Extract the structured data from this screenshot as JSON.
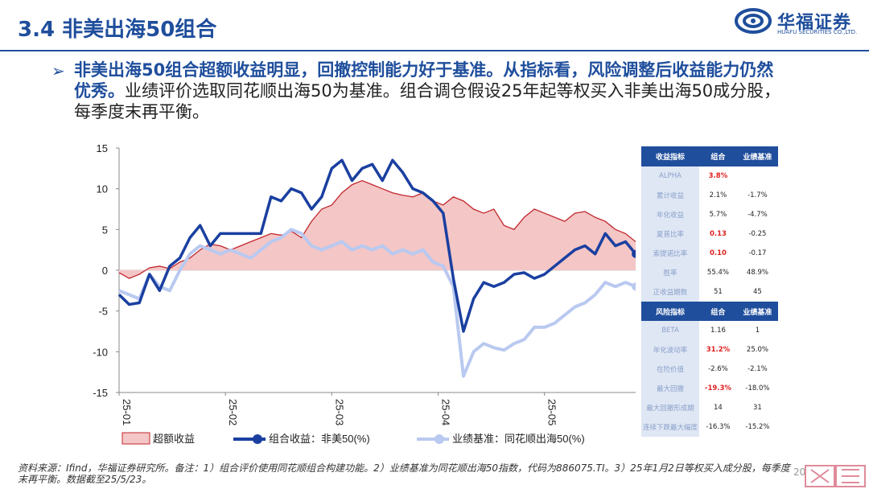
{
  "header": {
    "title": "3.4 非美出海50组合",
    "logo_cn": "华福证券",
    "logo_en": "HUAFU SECURITIES CO.,LTD."
  },
  "bullet": {
    "marker": "➢",
    "highlight": "非美出海50组合超额收益明显，回撤控制能力好于基准。从指标看，风险调整后收益能力仍然优秀。",
    "rest": "业绩评价选取同花顺出海50为基准。组合调仓假设25年起等权买入非美出海50成分股，每季度末再平衡。"
  },
  "table": {
    "returns_header": [
      "收益指标",
      "组合",
      "业绩基准"
    ],
    "returns_rows": [
      {
        "label": "ALPHA",
        "portfolio": "3.8%",
        "benchmark": "",
        "red": true
      },
      {
        "label": "累计收益",
        "portfolio": "2.1%",
        "benchmark": "-1.7%",
        "red": false
      },
      {
        "label": "年化收益",
        "portfolio": "5.7%",
        "benchmark": "-4.7%",
        "red": false
      },
      {
        "label": "夏普比率",
        "portfolio": "0.13",
        "benchmark": "-0.25",
        "red": true
      },
      {
        "label": "索提诺比率",
        "portfolio": "0.10",
        "benchmark": "-0.17",
        "red": true
      },
      {
        "label": "胜率",
        "portfolio": "55.4%",
        "benchmark": "48.9%",
        "red": false
      },
      {
        "label": "正收益期数",
        "portfolio": "51",
        "benchmark": "45",
        "red": false
      }
    ],
    "risk_header": [
      "风险指标",
      "组合",
      "业绩基准"
    ],
    "risk_rows": [
      {
        "label": "BETA",
        "portfolio": "1.16",
        "benchmark": "1",
        "red": false
      },
      {
        "label": "年化波动率",
        "portfolio": "31.2%",
        "benchmark": "25.0%",
        "red": true
      },
      {
        "label": "在险价值",
        "portfolio": "-2.6%",
        "benchmark": "-2.1%",
        "red": false
      },
      {
        "label": "最大回撤",
        "portfolio": "-19.3%",
        "benchmark": "-18.0%",
        "red": true
      },
      {
        "label": "最大回撤形成期",
        "portfolio": "14",
        "benchmark": "31",
        "red": false
      },
      {
        "label": "连续下跌最大幅度",
        "portfolio": "-16.3%",
        "benchmark": "-15.2%",
        "red": false
      }
    ]
  },
  "source": "资料来源：Ifind，华福证券研究所。备注：1）组合评价使用同花顺组合构建功能。2）业绩基准为同花顺出海50指数，代码为886075.TI。3）25年1月2日等权买入成分股，每季度末再平衡。数据截至25/5/23。",
  "page_number": "20",
  "colors": {
    "brand": "#1f4e9c",
    "excess_fill": "#f4c6c6",
    "excess_line": "#c0272d",
    "portfolio": "#1a3fa0",
    "benchmark": "#b9c9f0"
  },
  "chart_data": {
    "type": "line",
    "title": "",
    "ylim": [
      -15,
      15
    ],
    "yticks": [
      "15",
      "10",
      "5",
      "0",
      "-5",
      "-10",
      "-15"
    ],
    "xtick_labels": [
      "25-01",
      "25-02",
      "25-03",
      "25-04",
      "25-05"
    ],
    "x": [
      0,
      2,
      4,
      6,
      8,
      10,
      12,
      14,
      16,
      18,
      20,
      22,
      24,
      26,
      28,
      30,
      32,
      34,
      36,
      38,
      40,
      42,
      44,
      46,
      48,
      50,
      52,
      54,
      56,
      58,
      60,
      62,
      64,
      66,
      68,
      70,
      72,
      74,
      76,
      78,
      80,
      82,
      84,
      86,
      88,
      90,
      92,
      94,
      96,
      98,
      100,
      102
    ],
    "series": [
      {
        "name": "超额收益",
        "kind": "area",
        "values": [
          -0.3,
          -1.0,
          -0.5,
          0.3,
          0.5,
          0.2,
          1.0,
          1.5,
          2.5,
          3.2,
          3.0,
          2.5,
          3.0,
          3.5,
          4.0,
          4.5,
          4.3,
          4.8,
          4.0,
          6.0,
          7.5,
          8.0,
          9.5,
          10.5,
          11.0,
          10.5,
          10.0,
          9.5,
          9.2,
          9.0,
          9.5,
          8.5,
          8.0,
          9.0,
          8.5,
          7.5,
          7.0,
          7.5,
          5.5,
          5.0,
          6.5,
          7.5,
          7.0,
          6.5,
          6.0,
          7.0,
          7.2,
          6.5,
          6.0,
          5.0,
          4.5,
          3.5
        ]
      },
      {
        "name": "组合收益：非美50(%)",
        "kind": "line",
        "values": [
          -3.0,
          -4.2,
          -4.0,
          -0.5,
          -2.5,
          0.5,
          1.5,
          4.0,
          5.5,
          3.0,
          4.5,
          4.5,
          4.5,
          4.5,
          4.5,
          9.0,
          8.5,
          10.0,
          9.5,
          7.5,
          9.0,
          12.5,
          13.5,
          11.0,
          12.5,
          13.0,
          11.0,
          13.5,
          12.0,
          10.0,
          9.5,
          8.5,
          7.0,
          -1.0,
          -7.5,
          -3.5,
          -1.5,
          -2.0,
          -1.5,
          -0.5,
          -0.3,
          -1.0,
          -0.5,
          0.5,
          1.5,
          2.5,
          3.0,
          2.0,
          4.5,
          3.0,
          3.5,
          2.0
        ]
      },
      {
        "name": "业绩基准：同花顺出海50(%)",
        "kind": "line",
        "values": [
          -2.5,
          -3.0,
          -3.5,
          -0.5,
          -2.0,
          -2.5,
          0.0,
          2.0,
          3.0,
          2.5,
          2.0,
          2.5,
          2.0,
          1.5,
          2.5,
          3.5,
          4.0,
          5.0,
          4.5,
          3.0,
          2.5,
          3.0,
          3.5,
          2.5,
          3.0,
          2.5,
          3.0,
          2.0,
          2.5,
          2.0,
          2.5,
          1.0,
          0.5,
          -2.0,
          -13.0,
          -10.0,
          -9.0,
          -9.5,
          -9.8,
          -9.0,
          -8.5,
          -7.0,
          -7.0,
          -6.5,
          -5.5,
          -4.5,
          -4.0,
          -3.0,
          -1.5,
          -2.0,
          -1.5,
          -2.0
        ]
      }
    ]
  }
}
